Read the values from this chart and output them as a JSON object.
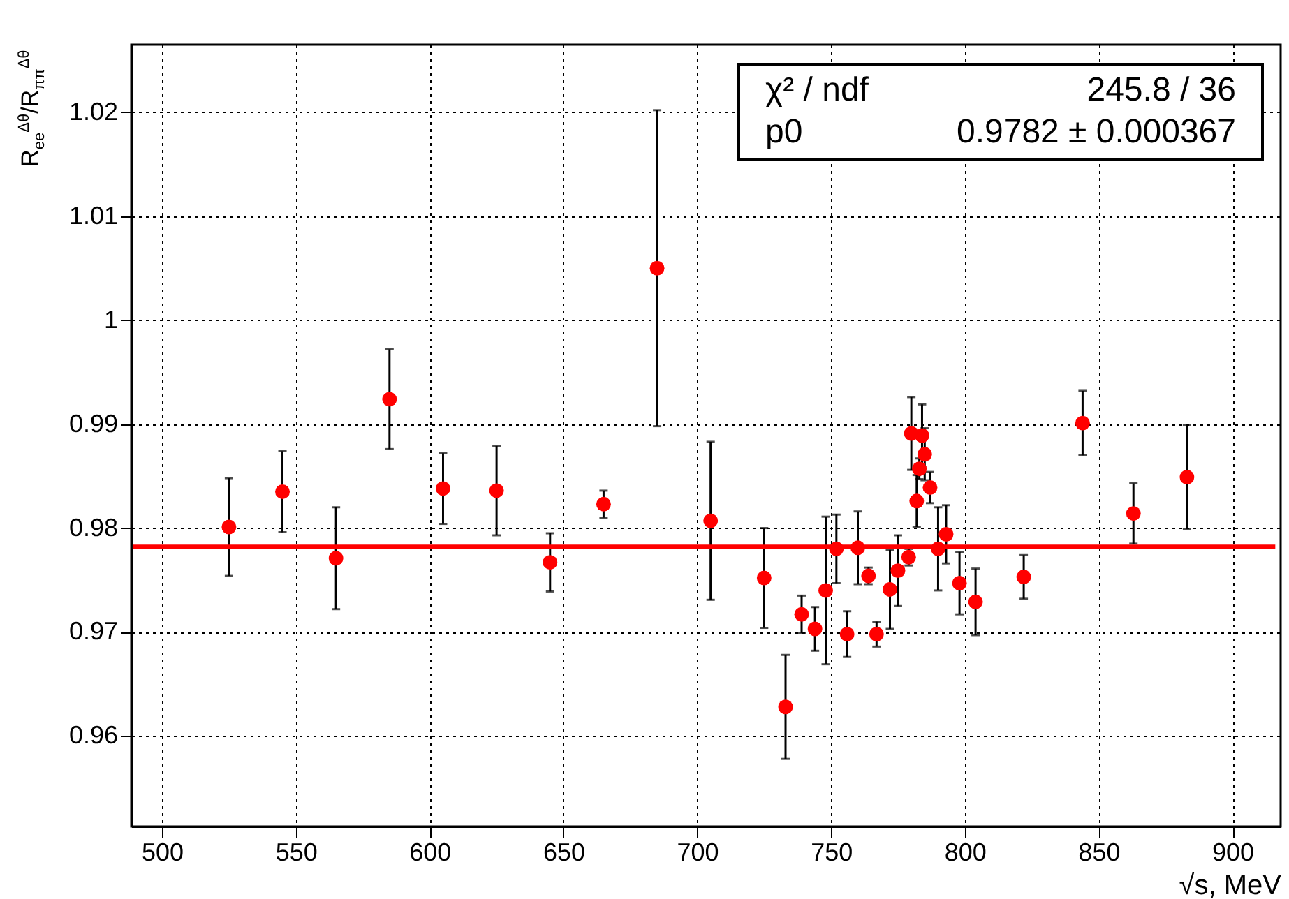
{
  "chart_data": {
    "type": "scatter",
    "xlabel": "√s, MeV",
    "ylabel": "R$_{ee}$$^{Δθ}$/R$_{ππ}$$^{Δθ}$",
    "annotations": [
      "χ² / ndf",
      "245.8 / 36",
      "p0",
      "0.9782 ± 0.000367"
    ],
    "xlim": [
      488.5,
      918
    ],
    "xticks": [
      500,
      550,
      600,
      650,
      700,
      750,
      800,
      850,
      900
    ],
    "ylim": [
      0.9513,
      1.0265
    ],
    "yticks": [
      0.96,
      0.97,
      0.98,
      0.99,
      {
        "value": 1,
        "label": "1"
      },
      1.01,
      1.02
    ],
    "grid": true,
    "series": [
      {
        "marker": "circle",
        "color": "#ff0000",
        "x": [
          525,
          545,
          565,
          585,
          605,
          625,
          645,
          665,
          685,
          705,
          725,
          733,
          739,
          744,
          748,
          752,
          756,
          760,
          764,
          767,
          772,
          775,
          779,
          780,
          784,
          785,
          783,
          787,
          782,
          790,
          793,
          798,
          804,
          822,
          844,
          863,
          883
        ],
        "values": [
          0.9801,
          0.9835,
          0.9771,
          0.9924,
          0.9838,
          0.9836,
          0.9767,
          0.9823,
          1.005,
          0.9807,
          0.9752,
          0.9628,
          0.9717,
          0.9703,
          0.974,
          0.978,
          0.9698,
          0.9781,
          0.9754,
          0.9698,
          0.9741,
          0.9759,
          0.9772,
          0.9891,
          0.9889,
          0.9871,
          0.9857,
          0.9839,
          0.9826,
          0.978,
          0.9794,
          0.9747,
          0.9729,
          0.9753,
          0.9901,
          0.9814,
          0.9849
        ],
        "errors": [
          0.0047,
          0.0039,
          0.0049,
          0.0048,
          0.0034,
          0.0043,
          0.0028,
          0.0013,
          0.0152,
          0.0076,
          0.0048,
          0.005,
          0.0018,
          0.0021,
          0.0071,
          0.0033,
          0.0022,
          0.0035,
          0.0008,
          0.0012,
          0.0038,
          0.0034,
          0.0008,
          0.0035,
          0.003,
          0.0025,
          0.001,
          0.0015,
          0.0025,
          0.004,
          0.0028,
          0.003,
          0.0032,
          0.0021,
          0.0031,
          0.0029,
          0.005
        ]
      },
      {
        "type": "line",
        "color": "#ff0000",
        "x": [
          489,
          916
        ],
        "values": [
          0.9782,
          0.9782
        ]
      }
    ]
  }
}
